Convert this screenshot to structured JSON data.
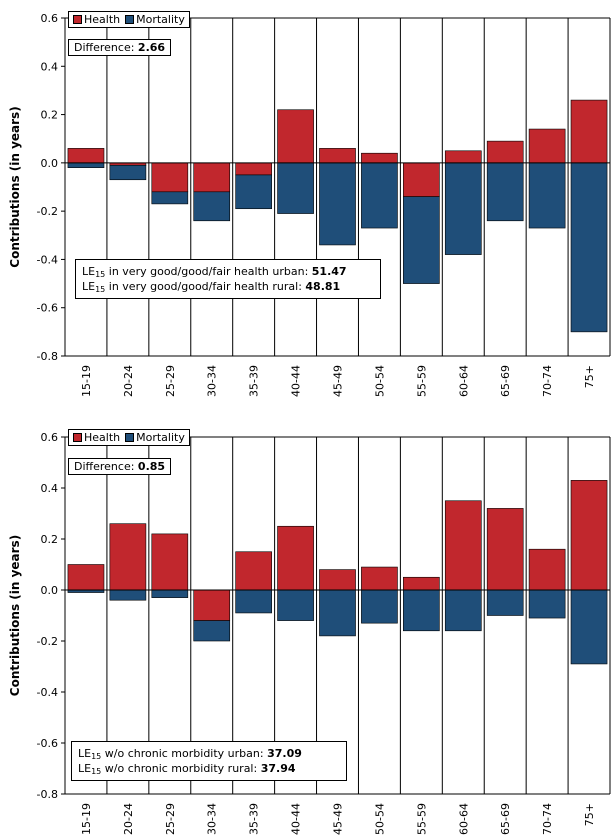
{
  "colors": {
    "health": "#c1272d",
    "mortality": "#1f4e79",
    "grid": "#000000"
  },
  "chart_data": [
    {
      "type": "bar",
      "stacked": "diverging",
      "categories": [
        "15-19",
        "20-24",
        "25-29",
        "30-34",
        "35-39",
        "40-44",
        "45-49",
        "50-54",
        "55-59",
        "60-64",
        "65-69",
        "70-74",
        "75+"
      ],
      "series": [
        {
          "name": "Health",
          "values": [
            0.06,
            -0.01,
            -0.12,
            -0.12,
            -0.05,
            0.22,
            0.06,
            0.04,
            -0.14,
            0.05,
            0.09,
            0.14,
            0.26
          ]
        },
        {
          "name": "Mortality",
          "values": [
            -0.02,
            -0.06,
            -0.05,
            -0.12,
            -0.14,
            -0.21,
            -0.34,
            -0.27,
            -0.36,
            -0.38,
            -0.24,
            -0.27,
            -0.7
          ]
        }
      ],
      "ylabel": "Contributions (in years)",
      "ylim": [
        -0.8,
        0.6
      ],
      "yticks": [
        "0.6",
        "0.4",
        "0.2",
        "0.0",
        "-0.2",
        "-0.4",
        "-0.6",
        "-0.8"
      ],
      "grid": "vertical",
      "legend": {
        "position": "top-left",
        "health_label": "Health",
        "mortality_label": "Mortality"
      },
      "difference_label": "Difference:",
      "difference_value": "2.66",
      "annotation": {
        "line1_prefix": "LE",
        "line1_sub": "15",
        "line1_text": " in very good/good/fair health urban: ",
        "line1_value": "51.47",
        "line2_prefix": "LE",
        "line2_sub": "15",
        "line2_text": " in very good/good/fair health rural: ",
        "line2_value": "48.81"
      }
    },
    {
      "type": "bar",
      "stacked": "diverging",
      "categories": [
        "15-19",
        "20-24",
        "25-29",
        "30-34",
        "35-39",
        "40-44",
        "45-49",
        "50-54",
        "55-59",
        "60-64",
        "65-69",
        "70-74",
        "75+"
      ],
      "series": [
        {
          "name": "Health",
          "values": [
            0.1,
            0.26,
            0.22,
            -0.12,
            0.15,
            0.25,
            0.08,
            0.09,
            0.05,
            0.35,
            0.32,
            0.16,
            0.43
          ]
        },
        {
          "name": "Mortality",
          "values": [
            -0.01,
            -0.04,
            -0.03,
            -0.08,
            -0.09,
            -0.12,
            -0.18,
            -0.13,
            -0.16,
            -0.16,
            -0.1,
            -0.11,
            -0.29
          ]
        }
      ],
      "ylabel": "Contributions (in years)",
      "ylim": [
        -0.8,
        0.6
      ],
      "yticks": [
        "0.6",
        "0.4",
        "0.2",
        "0.0",
        "-0.2",
        "-0.4",
        "-0.6",
        "-0.8"
      ],
      "grid": "vertical",
      "legend": {
        "position": "top-left",
        "health_label": "Health",
        "mortality_label": "Mortality"
      },
      "difference_label": "Difference:",
      "difference_value": "0.85",
      "annotation": {
        "line1_prefix": "LE",
        "line1_sub": "15",
        "line1_text": " w/o chronic morbidity urban: ",
        "line1_value": "37.09",
        "line2_prefix": "LE",
        "line2_sub": "15",
        "line2_text": " w/o chronic morbidity rural: ",
        "line2_value": "37.94"
      }
    }
  ]
}
